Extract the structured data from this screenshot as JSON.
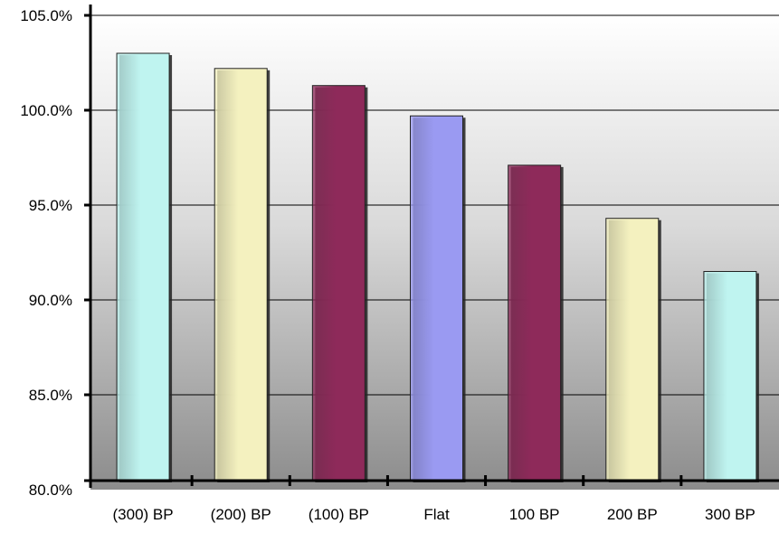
{
  "chart_data": {
    "type": "bar",
    "categories": [
      "(300) BP",
      "(200) BP",
      "(100) BP",
      "Flat",
      "100 BP",
      "200 BP",
      "300 BP"
    ],
    "values": [
      103.0,
      102.2,
      101.3,
      99.7,
      97.1,
      94.3,
      91.5
    ],
    "ylim": [
      80,
      105
    ],
    "y_ticks": [
      "80.0%",
      "85.0%",
      "90.0%",
      "95.0%",
      "100.0%",
      "105.0%"
    ],
    "title": "",
    "xlabel": "",
    "ylabel": "",
    "grid": true,
    "legend": "none",
    "bar_colors": [
      "#bff4f0",
      "#f4f1bf",
      "#8e2a5a",
      "#9a9af2",
      "#8e2a5a",
      "#f4f1bf",
      "#bff4f0"
    ]
  }
}
